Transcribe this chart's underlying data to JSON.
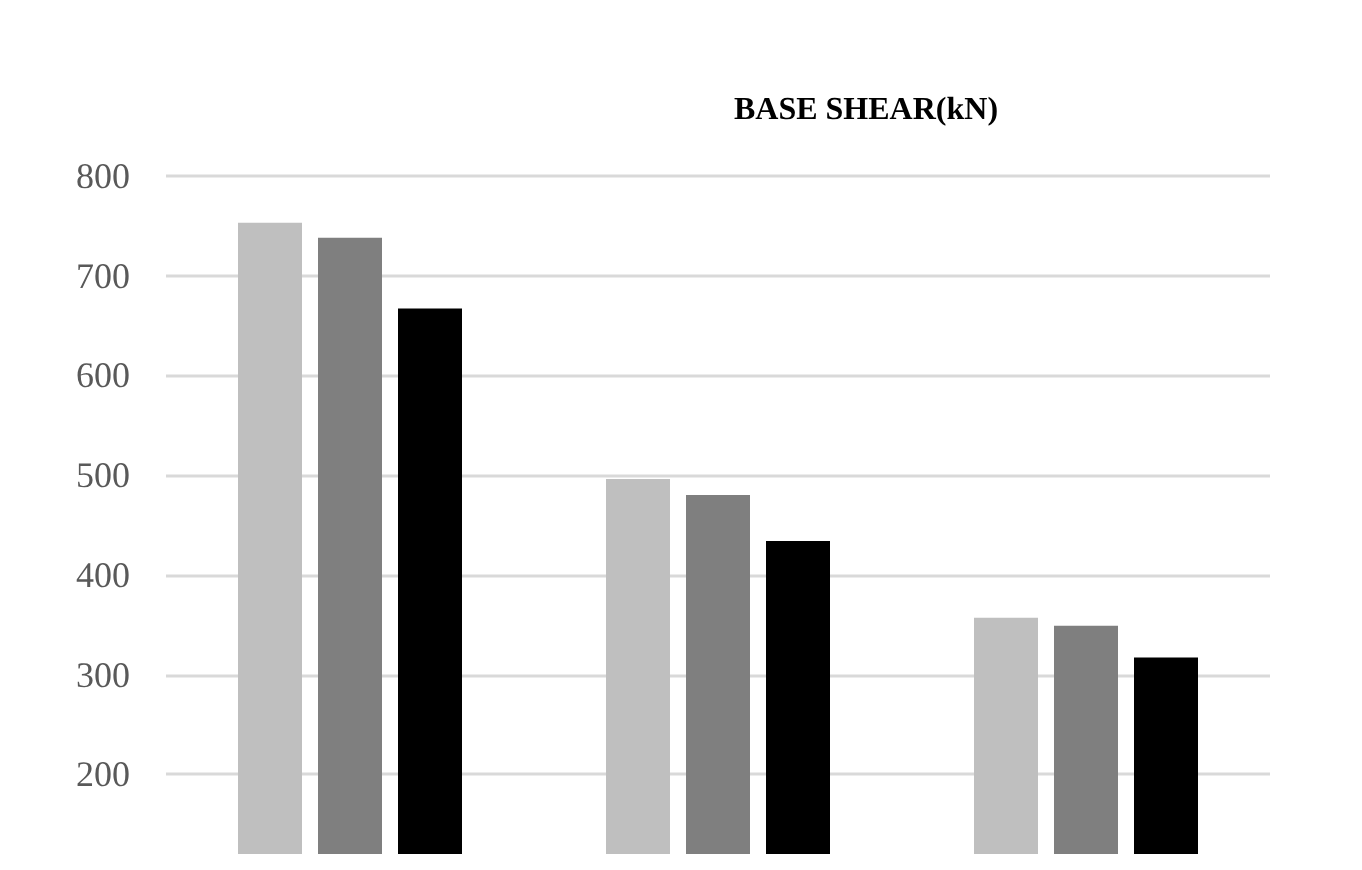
{
  "chart_data": {
    "type": "bar",
    "title": "BASE SHEAR(kN)",
    "categories": [
      null,
      null,
      null
    ],
    "series": [
      {
        "color": "#bfbfbf",
        "values": [
          753,
          496,
          357
        ]
      },
      {
        "color": "#7f7f7f",
        "values": [
          738,
          480,
          349
        ]
      },
      {
        "color": "#000000",
        "values": [
          667,
          434,
          317
        ]
      }
    ],
    "ylim": [
      120,
      800
    ],
    "yticks": [
      200,
      300,
      400,
      500,
      600,
      700,
      800
    ],
    "grid": "y"
  }
}
